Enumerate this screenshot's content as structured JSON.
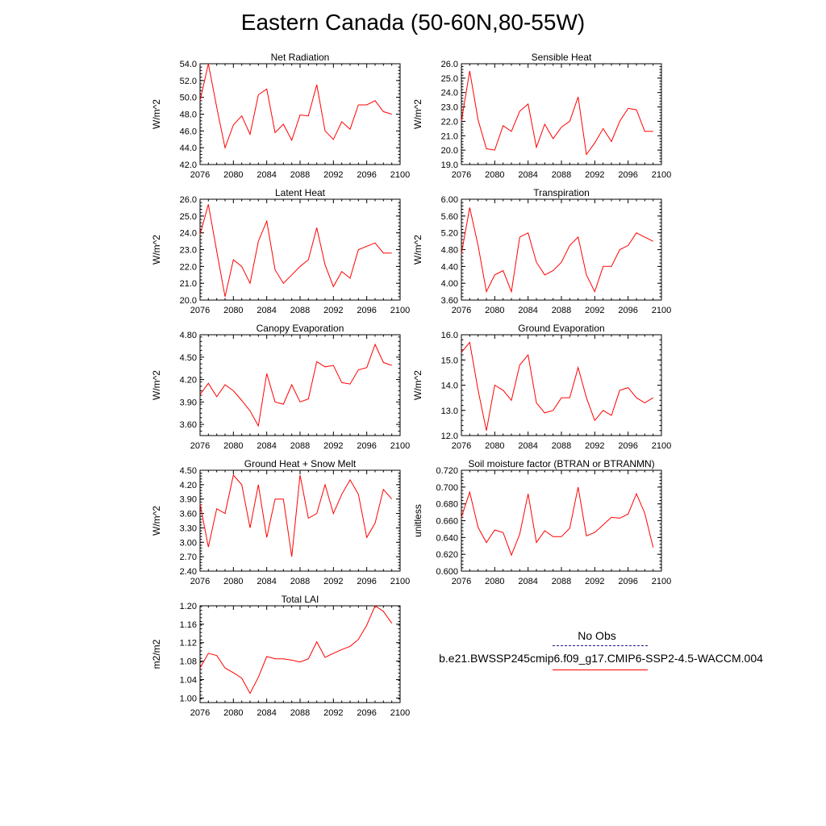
{
  "title": "Eastern Canada (50-60N,80-55W)",
  "legend": {
    "obs_label": "No Obs",
    "obs_color": "#1a1a8c",
    "model_label": "b.e21.BWSSP245cmip6.f09_g17.CMIP6-SSP2-4.5-WACCM.004",
    "model_color": "#ff0000"
  },
  "chart_data": [
    {
      "type": "line",
      "title": "Net Radiation",
      "ylabel": "W/m^2",
      "xlim": [
        2076,
        2100
      ],
      "ylim": [
        42.0,
        54.0
      ],
      "xticks": [
        2076,
        2080,
        2084,
        2088,
        2092,
        2096,
        2100
      ],
      "yticks": [
        42.0,
        44.0,
        46.0,
        48.0,
        50.0,
        52.0,
        54.0
      ],
      "ydecimals": 1,
      "x": [
        2076,
        2077,
        2078,
        2079,
        2080,
        2081,
        2082,
        2083,
        2084,
        2085,
        2086,
        2087,
        2088,
        2089,
        2090,
        2091,
        2092,
        2093,
        2094,
        2095,
        2096,
        2097,
        2098,
        2099
      ],
      "series": [
        {
          "values": [
            49.6,
            54.0,
            48.8,
            44.0,
            46.7,
            47.8,
            45.6,
            50.3,
            51.0,
            45.8,
            46.8,
            44.9,
            47.9,
            47.8,
            51.5,
            46.0,
            45.0,
            47.1,
            46.2,
            49.1,
            49.1,
            49.6,
            48.3,
            48.0
          ],
          "color": "#ff0000"
        }
      ]
    },
    {
      "type": "line",
      "title": "Sensible Heat",
      "ylabel": "W/m^2",
      "xlim": [
        2076,
        2100
      ],
      "ylim": [
        19.0,
        26.0
      ],
      "xticks": [
        2076,
        2080,
        2084,
        2088,
        2092,
        2096,
        2100
      ],
      "yticks": [
        19.0,
        20.0,
        21.0,
        22.0,
        23.0,
        24.0,
        25.0,
        26.0
      ],
      "ydecimals": 1,
      "x": [
        2076,
        2077,
        2078,
        2079,
        2080,
        2081,
        2082,
        2083,
        2084,
        2085,
        2086,
        2087,
        2088,
        2089,
        2090,
        2091,
        2092,
        2093,
        2094,
        2095,
        2096,
        2097,
        2098,
        2099
      ],
      "series": [
        {
          "values": [
            22.0,
            25.5,
            22.1,
            20.1,
            20.0,
            21.7,
            21.3,
            22.7,
            23.2,
            20.2,
            21.8,
            20.8,
            21.6,
            22.0,
            23.7,
            19.7,
            20.5,
            21.5,
            20.6,
            22.0,
            22.9,
            22.8,
            21.3,
            21.3
          ],
          "color": "#ff0000"
        }
      ]
    },
    {
      "type": "line",
      "title": "Latent Heat",
      "ylabel": "W/m^2",
      "xlim": [
        2076,
        2100
      ],
      "ylim": [
        20.0,
        26.0
      ],
      "xticks": [
        2076,
        2080,
        2084,
        2088,
        2092,
        2096,
        2100
      ],
      "yticks": [
        20.0,
        21.0,
        22.0,
        23.0,
        24.0,
        25.0,
        26.0
      ],
      "ydecimals": 1,
      "x": [
        2076,
        2077,
        2078,
        2079,
        2080,
        2081,
        2082,
        2083,
        2084,
        2085,
        2086,
        2087,
        2088,
        2089,
        2090,
        2091,
        2092,
        2093,
        2094,
        2095,
        2096,
        2097,
        2098,
        2099
      ],
      "series": [
        {
          "values": [
            23.9,
            25.7,
            22.9,
            20.2,
            22.4,
            22.0,
            21.0,
            23.5,
            24.7,
            21.8,
            21.0,
            21.5,
            22.0,
            22.4,
            24.3,
            22.1,
            20.8,
            21.7,
            21.3,
            23.0,
            23.2,
            23.4,
            22.8,
            22.8
          ],
          "color": "#ff0000"
        }
      ]
    },
    {
      "type": "line",
      "title": "Transpiration",
      "ylabel": "W/m^2",
      "xlim": [
        2076,
        2100
      ],
      "ylim": [
        3.6,
        6.0
      ],
      "xticks": [
        2076,
        2080,
        2084,
        2088,
        2092,
        2096,
        2100
      ],
      "yticks": [
        3.6,
        4.0,
        4.4,
        4.8,
        5.2,
        5.6,
        6.0
      ],
      "ydecimals": 2,
      "x": [
        2076,
        2077,
        2078,
        2079,
        2080,
        2081,
        2082,
        2083,
        2084,
        2085,
        2086,
        2087,
        2088,
        2089,
        2090,
        2091,
        2092,
        2093,
        2094,
        2095,
        2096,
        2097,
        2098,
        2099
      ],
      "series": [
        {
          "values": [
            4.7,
            5.8,
            4.9,
            3.8,
            4.2,
            4.3,
            3.8,
            5.1,
            5.2,
            4.5,
            4.2,
            4.3,
            4.5,
            4.9,
            5.1,
            4.2,
            3.8,
            4.4,
            4.4,
            4.8,
            4.9,
            5.2,
            5.1,
            5.0
          ],
          "color": "#ff0000"
        }
      ]
    },
    {
      "type": "line",
      "title": "Canopy Evaporation",
      "ylabel": "W/m^2",
      "xlim": [
        2076,
        2100
      ],
      "ylim": [
        3.45,
        4.8
      ],
      "xticks": [
        2076,
        2080,
        2084,
        2088,
        2092,
        2096,
        2100
      ],
      "yticks": [
        3.6,
        3.9,
        4.2,
        4.5,
        4.8
      ],
      "ydecimals": 2,
      "x": [
        2076,
        2077,
        2078,
        2079,
        2080,
        2081,
        2082,
        2083,
        2084,
        2085,
        2086,
        2087,
        2088,
        2089,
        2090,
        2091,
        2092,
        2093,
        2094,
        2095,
        2096,
        2097,
        2098,
        2099
      ],
      "series": [
        {
          "values": [
            4.0,
            4.15,
            3.97,
            4.13,
            4.05,
            3.92,
            3.78,
            3.58,
            4.28,
            3.9,
            3.87,
            4.13,
            3.9,
            3.94,
            4.44,
            4.37,
            4.39,
            4.16,
            4.14,
            4.33,
            4.36,
            4.67,
            4.43,
            4.39
          ],
          "color": "#ff0000"
        }
      ]
    },
    {
      "type": "line",
      "title": "Ground Evaporation",
      "ylabel": "W/m^2",
      "xlim": [
        2076,
        2100
      ],
      "ylim": [
        12.0,
        16.0
      ],
      "xticks": [
        2076,
        2080,
        2084,
        2088,
        2092,
        2096,
        2100
      ],
      "yticks": [
        12.0,
        13.0,
        14.0,
        15.0,
        16.0
      ],
      "ydecimals": 1,
      "x": [
        2076,
        2077,
        2078,
        2079,
        2080,
        2081,
        2082,
        2083,
        2084,
        2085,
        2086,
        2087,
        2088,
        2089,
        2090,
        2091,
        2092,
        2093,
        2094,
        2095,
        2096,
        2097,
        2098,
        2099
      ],
      "series": [
        {
          "values": [
            15.3,
            15.7,
            13.8,
            12.2,
            14.0,
            13.8,
            13.4,
            14.8,
            15.2,
            13.3,
            12.9,
            13.0,
            13.5,
            13.5,
            14.7,
            13.5,
            12.6,
            13.0,
            12.8,
            13.8,
            13.9,
            13.5,
            13.3,
            13.5
          ],
          "color": "#ff0000"
        }
      ]
    },
    {
      "type": "line",
      "title": "Ground Heat + Snow Melt",
      "ylabel": "W/m^2",
      "xlim": [
        2076,
        2100
      ],
      "ylim": [
        2.4,
        4.5
      ],
      "xticks": [
        2076,
        2080,
        2084,
        2088,
        2092,
        2096,
        2100
      ],
      "yticks": [
        2.4,
        2.7,
        3.0,
        3.3,
        3.6,
        3.9,
        4.2,
        4.5
      ],
      "ydecimals": 2,
      "x": [
        2076,
        2077,
        2078,
        2079,
        2080,
        2081,
        2082,
        2083,
        2084,
        2085,
        2086,
        2087,
        2088,
        2089,
        2090,
        2091,
        2092,
        2093,
        2094,
        2095,
        2096,
        2097,
        2098,
        2099
      ],
      "series": [
        {
          "values": [
            3.8,
            2.9,
            3.7,
            3.6,
            4.4,
            4.2,
            3.3,
            4.2,
            3.1,
            3.9,
            3.9,
            2.7,
            4.4,
            3.5,
            3.6,
            4.2,
            3.6,
            4.0,
            4.3,
            4.0,
            3.1,
            3.4,
            4.1,
            3.9
          ],
          "color": "#ff0000"
        }
      ]
    },
    {
      "type": "line",
      "title": "Soil moisture factor (BTRAN or BTRANMN)",
      "ylabel": "unitless",
      "xlim": [
        2076,
        2100
      ],
      "ylim": [
        0.6,
        0.72
      ],
      "xticks": [
        2076,
        2080,
        2084,
        2088,
        2092,
        2096,
        2100
      ],
      "yticks": [
        0.6,
        0.62,
        0.64,
        0.66,
        0.68,
        0.7,
        0.72
      ],
      "ydecimals": 3,
      "x": [
        2076,
        2077,
        2078,
        2079,
        2080,
        2081,
        2082,
        2083,
        2084,
        2085,
        2086,
        2087,
        2088,
        2089,
        2090,
        2091,
        2092,
        2093,
        2094,
        2095,
        2096,
        2097,
        2098,
        2099
      ],
      "series": [
        {
          "values": [
            0.664,
            0.694,
            0.652,
            0.634,
            0.649,
            0.646,
            0.619,
            0.644,
            0.692,
            0.634,
            0.648,
            0.641,
            0.641,
            0.651,
            0.7,
            0.642,
            0.646,
            0.655,
            0.664,
            0.663,
            0.668,
            0.692,
            0.669,
            0.628
          ],
          "color": "#ff0000"
        }
      ]
    },
    {
      "type": "line",
      "title": "Total LAI",
      "ylabel": "m2/m2",
      "xlim": [
        2076,
        2100
      ],
      "ylim": [
        0.99,
        1.2
      ],
      "xticks": [
        2076,
        2080,
        2084,
        2088,
        2092,
        2096,
        2100
      ],
      "yticks": [
        1.0,
        1.04,
        1.08,
        1.12,
        1.16,
        1.2
      ],
      "ydecimals": 2,
      "x": [
        2076,
        2077,
        2078,
        2079,
        2080,
        2081,
        2082,
        2083,
        2084,
        2085,
        2086,
        2087,
        2088,
        2089,
        2090,
        2091,
        2092,
        2093,
        2094,
        2095,
        2096,
        2097,
        2098,
        2099
      ],
      "series": [
        {
          "values": [
            1.065,
            1.097,
            1.092,
            1.065,
            1.055,
            1.043,
            1.01,
            1.045,
            1.09,
            1.085,
            1.085,
            1.082,
            1.078,
            1.085,
            1.122,
            1.088,
            1.097,
            1.105,
            1.112,
            1.127,
            1.158,
            1.2,
            1.188,
            1.162
          ],
          "color": "#ff0000"
        }
      ]
    }
  ]
}
